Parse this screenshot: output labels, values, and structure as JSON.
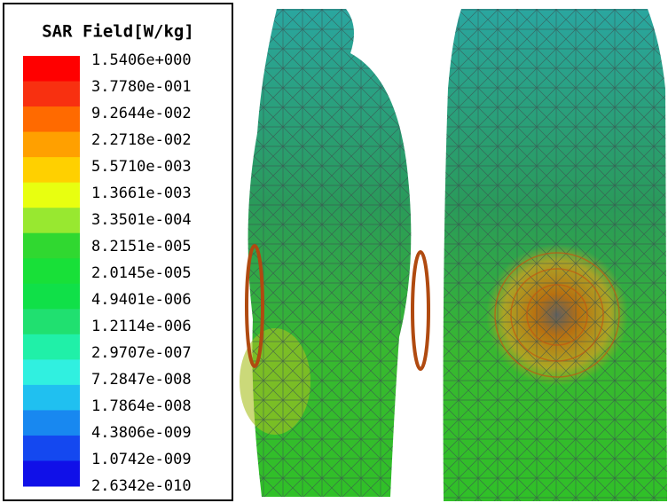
{
  "legend": {
    "title": "SAR Field[W/kg]",
    "labels": [
      "1.5406e+000",
      "3.7780e-001",
      "9.2644e-002",
      "2.2718e-002",
      "5.5710e-003",
      "1.3661e-003",
      "3.3501e-004",
      "8.2151e-005",
      "2.0145e-005",
      "4.9401e-006",
      "1.2114e-006",
      "2.9707e-007",
      "7.2847e-008",
      "1.7864e-008",
      "4.3806e-009",
      "1.0742e-009",
      "2.6342e-010"
    ],
    "colors": [
      "#ff0000",
      "#f83010",
      "#ff6a00",
      "#ffa000",
      "#ffd000",
      "#e8ff10",
      "#98e830",
      "#30d830",
      "#18e038",
      "#10e048",
      "#20e070",
      "#20f0a8",
      "#30f0e0",
      "#20c0f0",
      "#1888f0",
      "#1448f0",
      "#1010e8"
    ]
  }
}
